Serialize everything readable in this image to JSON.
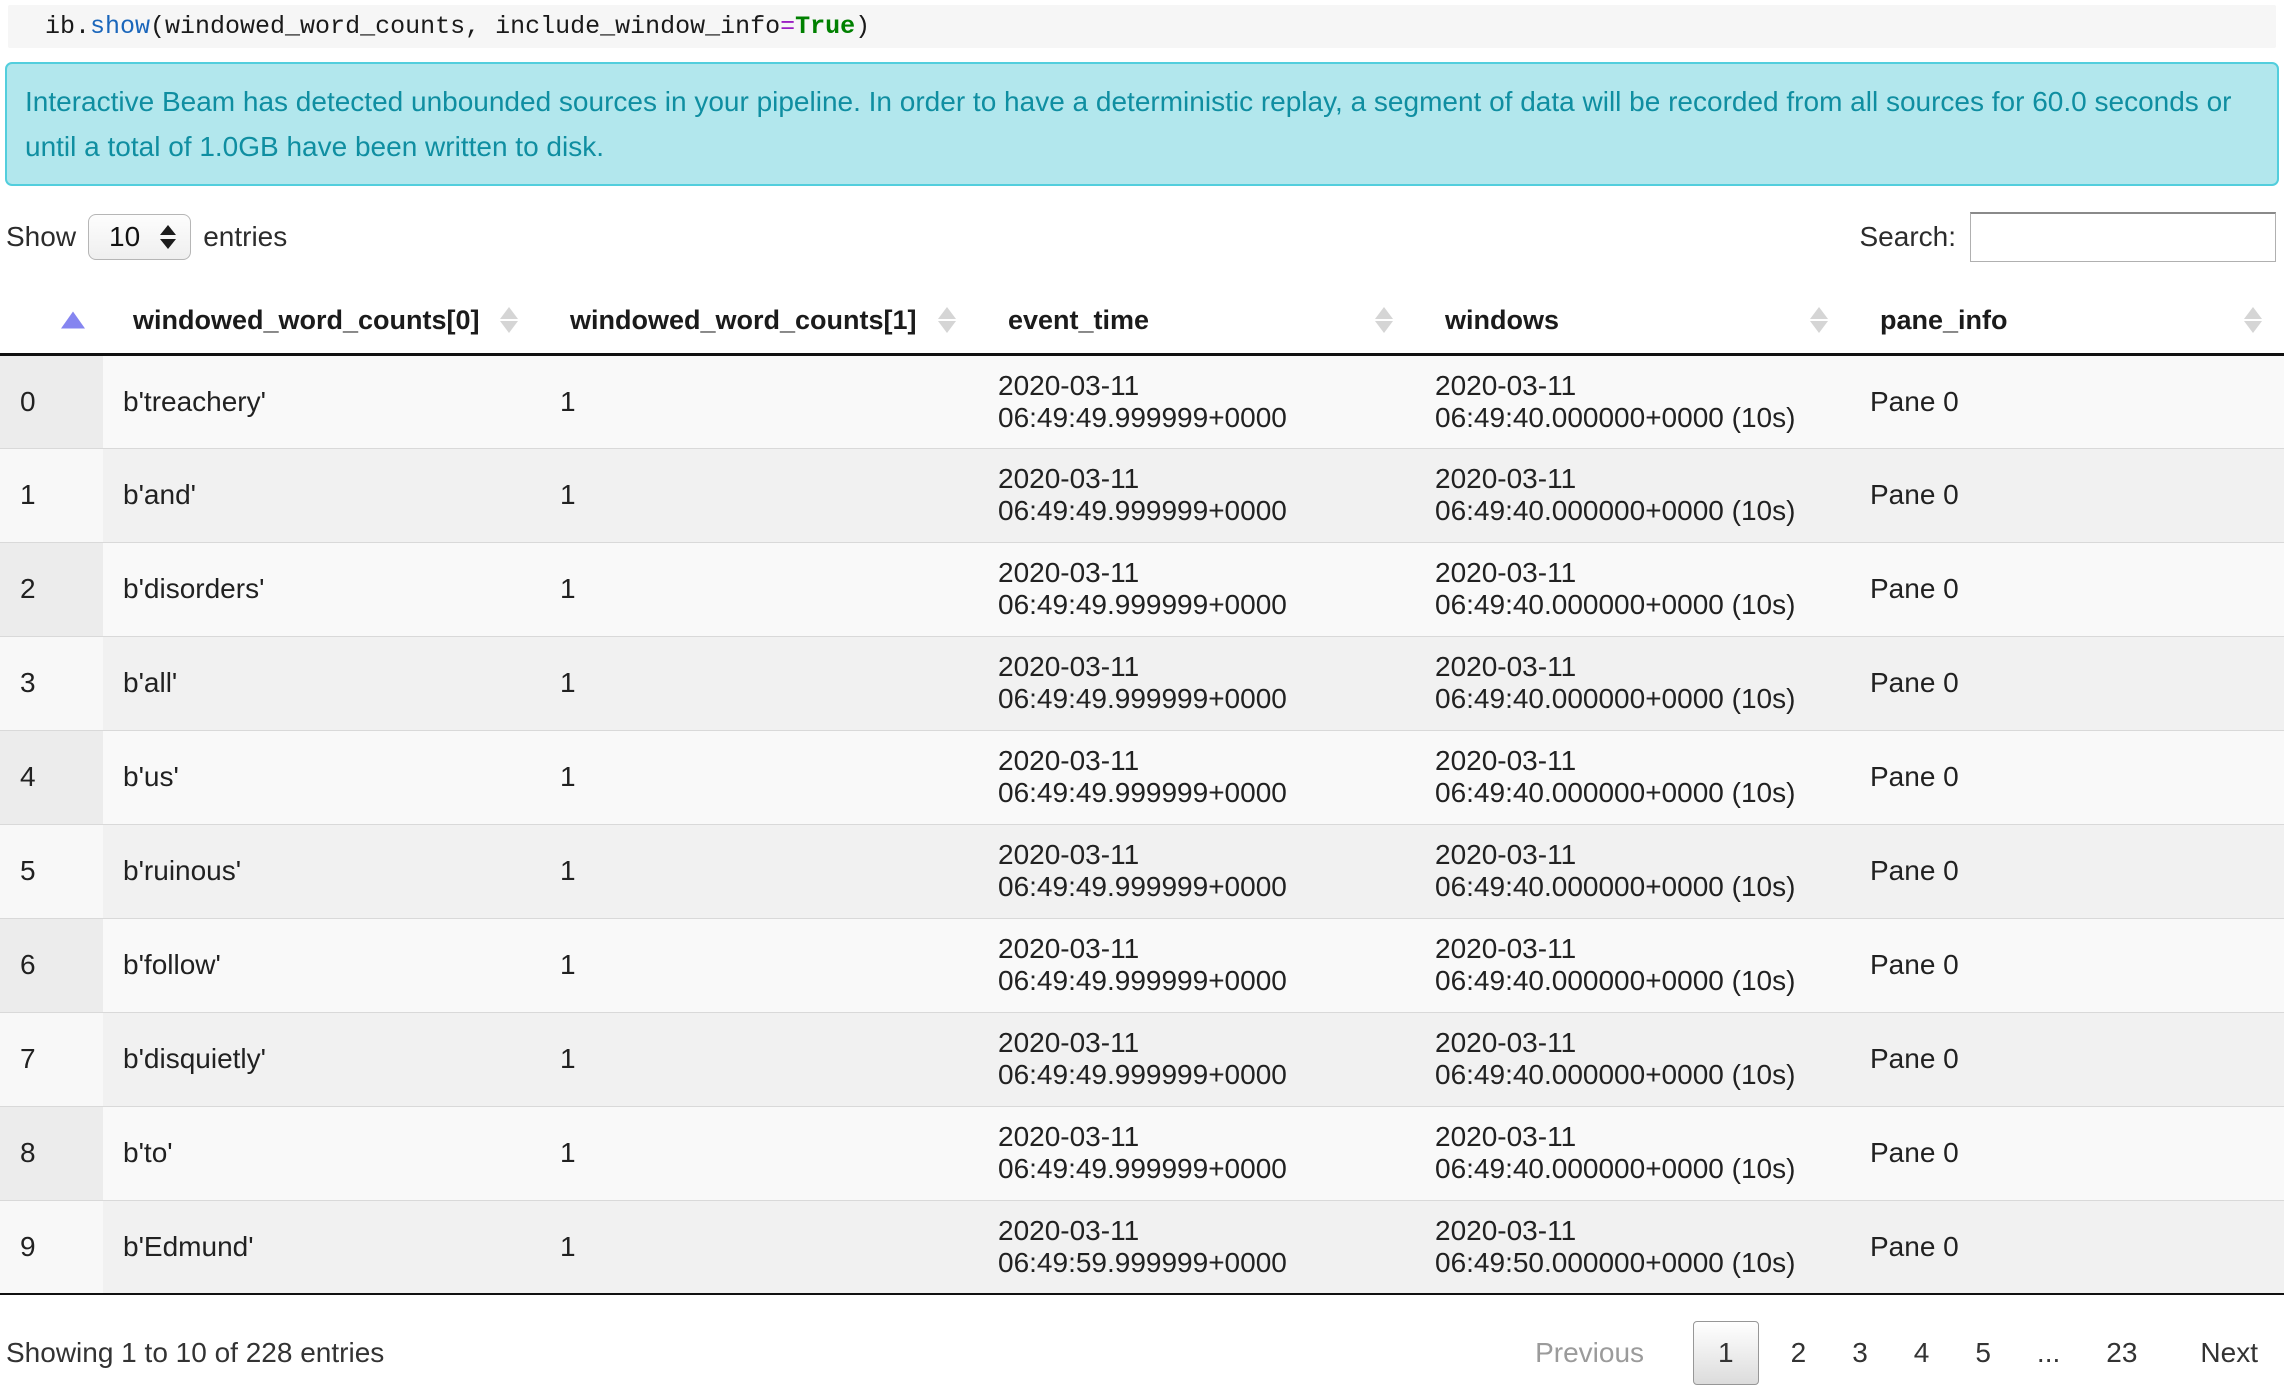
{
  "code": {
    "tokens": [
      {
        "text": "ib.",
        "type": "plain"
      },
      {
        "text": "show",
        "type": "function"
      },
      {
        "text": "(windowed_word_counts, include_window_info",
        "type": "plain"
      },
      {
        "text": "=",
        "type": "operator"
      },
      {
        "text": "True",
        "type": "keyword"
      },
      {
        "text": ")",
        "type": "plain"
      }
    ]
  },
  "banner": {
    "text": "Interactive Beam has detected unbounded sources in your pipeline. In order to have a deterministic replay, a segment of data will be recorded from all sources for 60.0 seconds or until a total of 1.0GB have been written to disk."
  },
  "controls": {
    "show_label": "Show",
    "page_size": "10",
    "entries_label": "entries",
    "search_label": "Search:",
    "search_value": ""
  },
  "table": {
    "columns": [
      {
        "label": "",
        "sort": "ascending"
      },
      {
        "label": "windowed_word_counts[0]",
        "sort": "none"
      },
      {
        "label": "windowed_word_counts[1]",
        "sort": "none"
      },
      {
        "label": "event_time",
        "sort": "none"
      },
      {
        "label": "windows",
        "sort": "none"
      },
      {
        "label": "pane_info",
        "sort": "none"
      }
    ],
    "rows": [
      {
        "index": "0",
        "word": "b'treachery'",
        "count": "1",
        "event_date": "2020-03-11",
        "event_time": "06:49:49.999999+0000",
        "window_date": "2020-03-11",
        "window_time": "06:49:40.000000+0000 (10s)",
        "pane": "Pane 0"
      },
      {
        "index": "1",
        "word": "b'and'",
        "count": "1",
        "event_date": "2020-03-11",
        "event_time": "06:49:49.999999+0000",
        "window_date": "2020-03-11",
        "window_time": "06:49:40.000000+0000 (10s)",
        "pane": "Pane 0"
      },
      {
        "index": "2",
        "word": "b'disorders'",
        "count": "1",
        "event_date": "2020-03-11",
        "event_time": "06:49:49.999999+0000",
        "window_date": "2020-03-11",
        "window_time": "06:49:40.000000+0000 (10s)",
        "pane": "Pane 0"
      },
      {
        "index": "3",
        "word": "b'all'",
        "count": "1",
        "event_date": "2020-03-11",
        "event_time": "06:49:49.999999+0000",
        "window_date": "2020-03-11",
        "window_time": "06:49:40.000000+0000 (10s)",
        "pane": "Pane 0"
      },
      {
        "index": "4",
        "word": "b'us'",
        "count": "1",
        "event_date": "2020-03-11",
        "event_time": "06:49:49.999999+0000",
        "window_date": "2020-03-11",
        "window_time": "06:49:40.000000+0000 (10s)",
        "pane": "Pane 0"
      },
      {
        "index": "5",
        "word": "b'ruinous'",
        "count": "1",
        "event_date": "2020-03-11",
        "event_time": "06:49:49.999999+0000",
        "window_date": "2020-03-11",
        "window_time": "06:49:40.000000+0000 (10s)",
        "pane": "Pane 0"
      },
      {
        "index": "6",
        "word": "b'follow'",
        "count": "1",
        "event_date": "2020-03-11",
        "event_time": "06:49:49.999999+0000",
        "window_date": "2020-03-11",
        "window_time": "06:49:40.000000+0000 (10s)",
        "pane": "Pane 0"
      },
      {
        "index": "7",
        "word": "b'disquietly'",
        "count": "1",
        "event_date": "2020-03-11",
        "event_time": "06:49:49.999999+0000",
        "window_date": "2020-03-11",
        "window_time": "06:49:40.000000+0000 (10s)",
        "pane": "Pane 0"
      },
      {
        "index": "8",
        "word": "b'to'",
        "count": "1",
        "event_date": "2020-03-11",
        "event_time": "06:49:49.999999+0000",
        "window_date": "2020-03-11",
        "window_time": "06:49:40.000000+0000 (10s)",
        "pane": "Pane 0"
      },
      {
        "index": "9",
        "word": "b'Edmund'",
        "count": "1",
        "event_date": "2020-03-11",
        "event_time": "06:49:59.999999+0000",
        "window_date": "2020-03-11",
        "window_time": "06:49:50.000000+0000 (10s)",
        "pane": "Pane 0"
      }
    ]
  },
  "footer": {
    "info": "Showing 1 to 10 of 228 entries",
    "pagination": {
      "previous": "Previous",
      "pages": [
        {
          "label": "1",
          "current": true
        },
        {
          "label": "2"
        },
        {
          "label": "3"
        },
        {
          "label": "4"
        },
        {
          "label": "5"
        },
        {
          "label": "..."
        },
        {
          "label": "23"
        }
      ],
      "next": "Next"
    }
  },
  "colors": {
    "banner_background": "#b2e7ed",
    "banner_border": "#52cedd",
    "banner_text": "#0f8ea1",
    "sort_active_arrow": "#8585f0",
    "sort_inactive_arrow": "#d5d5d5",
    "code_function": "#1a66bb",
    "code_operator": "#9a1fc4",
    "code_keyword": "#008000"
  }
}
